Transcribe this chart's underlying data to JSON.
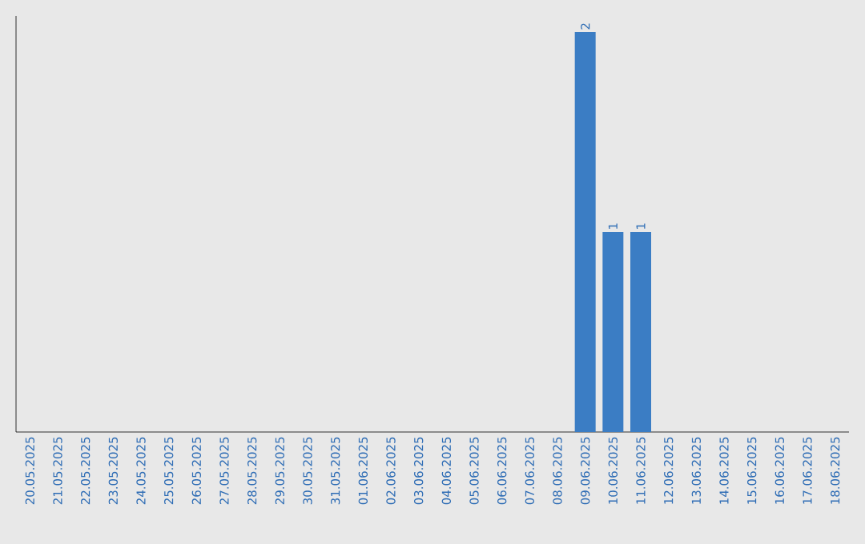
{
  "chart_data": {
    "type": "bar",
    "categories": [
      "20.05.2025",
      "21.05.2025",
      "22.05.2025",
      "23.05.2025",
      "24.05.2025",
      "25.05.2025",
      "26.05.2025",
      "27.05.2025",
      "28.05.2025",
      "29.05.2025",
      "30.05.2025",
      "31.05.2025",
      "01.06.2025",
      "02.06.2025",
      "03.06.2025",
      "04.06.2025",
      "05.06.2025",
      "06.06.2025",
      "07.06.2025",
      "08.06.2025",
      "09.06.2025",
      "10.06.2025",
      "11.06.2025",
      "12.06.2025",
      "13.06.2025",
      "14.06.2025",
      "15.06.2025",
      "16.06.2025",
      "17.06.2025",
      "18.06.2025"
    ],
    "values": [
      null,
      null,
      null,
      null,
      null,
      null,
      null,
      null,
      null,
      null,
      null,
      null,
      null,
      null,
      null,
      null,
      null,
      null,
      null,
      null,
      2,
      1,
      1,
      null,
      null,
      null,
      null,
      null,
      null,
      null
    ],
    "value_labels": [
      null,
      null,
      null,
      null,
      null,
      null,
      null,
      null,
      null,
      null,
      null,
      null,
      null,
      null,
      null,
      null,
      null,
      null,
      null,
      null,
      "2",
      "1",
      "1",
      null,
      null,
      null,
      null,
      null,
      null,
      null
    ],
    "color": "#3b7dc4",
    "ylim": [
      0,
      2.08
    ]
  }
}
